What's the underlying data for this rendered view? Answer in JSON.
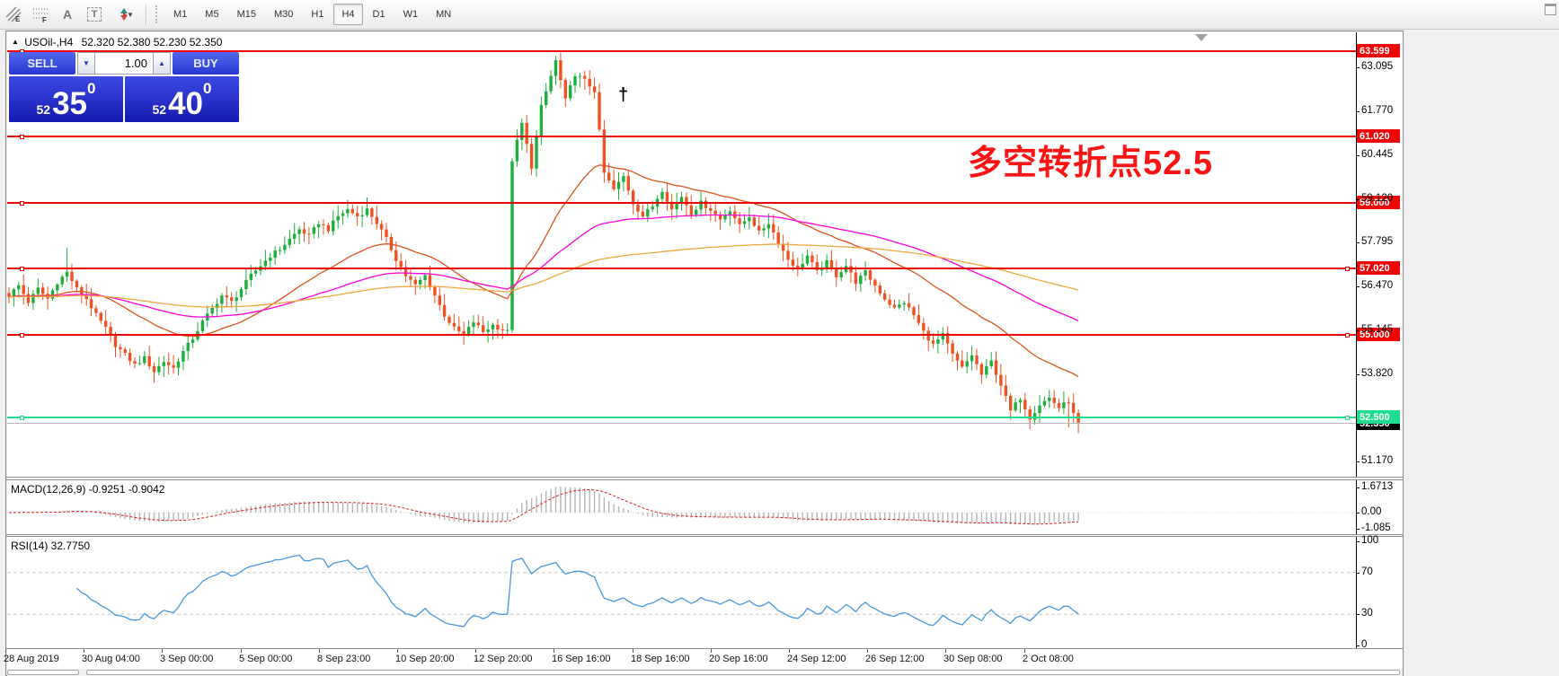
{
  "toolbar": {
    "tools": [
      "channel-e-tool",
      "grid-f-tool",
      "text-tool",
      "label-tool",
      "arrows-tool"
    ],
    "timeframes": [
      "M1",
      "M5",
      "M15",
      "M30",
      "H1",
      "H4",
      "D1",
      "W1",
      "MN"
    ],
    "active_timeframe": "H4"
  },
  "title": {
    "marker": "▲",
    "symbol": "USOil-,H4",
    "ohlc": "52.320 52.380 52.230 52.350"
  },
  "trade": {
    "sell_label": "SELL",
    "buy_label": "BUY",
    "volume": "1.00",
    "sell_price": {
      "big": "52",
      "main": "35",
      "sup": "0"
    },
    "buy_price": {
      "big": "52",
      "main": "40",
      "sup": "0"
    }
  },
  "annotation": {
    "text": "多空转折点52.5",
    "color": "#fb1414"
  },
  "price_axis": {
    "ticks": [
      {
        "label": "63.095",
        "price": 63.095
      },
      {
        "label": "61.770",
        "price": 61.77
      },
      {
        "label": "60.445",
        "price": 60.445
      },
      {
        "label": "59.120",
        "price": 59.12
      },
      {
        "label": "57.795",
        "price": 57.795
      },
      {
        "label": "56.470",
        "price": 56.47
      },
      {
        "label": "55.145",
        "price": 55.145
      },
      {
        "label": "53.820",
        "price": 53.82
      },
      {
        "label": "51.170",
        "price": 51.17
      }
    ]
  },
  "hlines": [
    {
      "label": "63.599",
      "price": 63.599,
      "color": "#ee0404",
      "anchors": 1
    },
    {
      "label": "61.020",
      "price": 61.02,
      "color": "#ee0404",
      "anchors": 1
    },
    {
      "label": "59.000",
      "price": 59.0,
      "color": "#ee0404",
      "anchors": 1
    },
    {
      "label": "57.020",
      "price": 57.02,
      "color": "#ee0404",
      "anchors": 2
    },
    {
      "label": "55.000",
      "price": 55.0,
      "color": "#ee0404",
      "anchors": 2
    },
    {
      "label": "52.500",
      "price": 52.5,
      "color": "#1fdd8e",
      "anchors": 2
    }
  ],
  "bid": {
    "label": "52.350",
    "price": 52.35,
    "line_color": "#b8b8b8",
    "badge_color": "#000000"
  },
  "macd": {
    "header": "MACD(12,26,9) -0.9251 -0.9042",
    "ticks": [
      {
        "label": "1.6713",
        "value": 1.6713
      },
      {
        "label": "0.00",
        "value": 0
      },
      {
        "label": "-1.085",
        "value": -1.085
      }
    ],
    "hist_color": "#b6b6b6",
    "signal_color": "#dd1c1c"
  },
  "rsi": {
    "header": "RSI(14) 32.7750",
    "ticks": [
      {
        "label": "100",
        "value": 100
      },
      {
        "label": "70",
        "value": 70
      },
      {
        "label": "30",
        "value": 30
      },
      {
        "label": "0",
        "value": 0
      }
    ],
    "levels": [
      70,
      30
    ],
    "line_color": "#4697e0",
    "period": 14
  },
  "time_axis": {
    "labels": [
      "28 Aug 2019",
      "30 Aug 04:00",
      "3 Sep 00:00",
      "5 Sep 00:00",
      "8 Sep 23:00",
      "10 Sep 20:00",
      "12 Sep 20:00",
      "16 Sep 16:00",
      "18 Sep 16:00",
      "20 Sep 16:00",
      "24 Sep 12:00",
      "26 Sep 12:00",
      "30 Sep 08:00",
      "2 Oct 08:00"
    ]
  },
  "chart_data": {
    "type": "candlestick",
    "symbol": "USOil-",
    "timeframe": "H4",
    "ohlc_current": {
      "open": "52.320",
      "high": "52.380",
      "low": "52.230",
      "close": "52.350"
    },
    "count": 222,
    "noise": 0.14,
    "colors": {
      "up": "#1daf3c",
      "down": "#ef5123"
    },
    "close_waypoints": [
      [
        0,
        56.2
      ],
      [
        2,
        56.5
      ],
      [
        4,
        56.0
      ],
      [
        6,
        56.4
      ],
      [
        8,
        56.1
      ],
      [
        10,
        56.6
      ],
      [
        12,
        56.9
      ],
      [
        14,
        56.4
      ],
      [
        16,
        56.1
      ],
      [
        18,
        55.6
      ],
      [
        20,
        55.2
      ],
      [
        22,
        54.7
      ],
      [
        24,
        54.4
      ],
      [
        26,
        54.1
      ],
      [
        28,
        54.3
      ],
      [
        30,
        53.9
      ],
      [
        32,
        54.2
      ],
      [
        34,
        54.0
      ],
      [
        36,
        54.5
      ],
      [
        38,
        54.9
      ],
      [
        40,
        55.4
      ],
      [
        42,
        55.8
      ],
      [
        44,
        56.2
      ],
      [
        46,
        56.0
      ],
      [
        48,
        56.4
      ],
      [
        50,
        56.8
      ],
      [
        52,
        57.1
      ],
      [
        54,
        57.4
      ],
      [
        56,
        57.6
      ],
      [
        58,
        57.9
      ],
      [
        60,
        58.2
      ],
      [
        62,
        58.0
      ],
      [
        64,
        58.4
      ],
      [
        66,
        58.2
      ],
      [
        68,
        58.6
      ],
      [
        70,
        58.8
      ],
      [
        72,
        58.6
      ],
      [
        74,
        58.8
      ],
      [
        76,
        58.4
      ],
      [
        78,
        57.9
      ],
      [
        80,
        57.3
      ],
      [
        82,
        56.8
      ],
      [
        84,
        56.5
      ],
      [
        86,
        56.8
      ],
      [
        88,
        56.2
      ],
      [
        90,
        55.6
      ],
      [
        92,
        55.2
      ],
      [
        94,
        55.0
      ],
      [
        96,
        55.4
      ],
      [
        98,
        55.1
      ],
      [
        100,
        55.3
      ],
      [
        103,
        55.1
      ],
      [
        104,
        60.3
      ],
      [
        106,
        61.4
      ],
      [
        108,
        60.1
      ],
      [
        110,
        61.9
      ],
      [
        113,
        63.3
      ],
      [
        115,
        62.1
      ],
      [
        117,
        62.9
      ],
      [
        119,
        62.7
      ],
      [
        121,
        62.4
      ],
      [
        123,
        59.9
      ],
      [
        125,
        59.4
      ],
      [
        127,
        59.8
      ],
      [
        129,
        59.0
      ],
      [
        131,
        58.6
      ],
      [
        133,
        58.9
      ],
      [
        135,
        59.4
      ],
      [
        137,
        58.8
      ],
      [
        139,
        59.2
      ],
      [
        141,
        58.7
      ],
      [
        143,
        59.0
      ],
      [
        145,
        58.8
      ],
      [
        147,
        58.5
      ],
      [
        149,
        58.8
      ],
      [
        151,
        58.3
      ],
      [
        153,
        58.6
      ],
      [
        155,
        58.1
      ],
      [
        157,
        58.4
      ],
      [
        159,
        57.8
      ],
      [
        161,
        57.3
      ],
      [
        163,
        57.0
      ],
      [
        165,
        57.4
      ],
      [
        167,
        56.9
      ],
      [
        169,
        57.2
      ],
      [
        171,
        56.8
      ],
      [
        173,
        57.1
      ],
      [
        175,
        56.6
      ],
      [
        177,
        56.9
      ],
      [
        179,
        56.5
      ],
      [
        181,
        56.1
      ],
      [
        183,
        55.8
      ],
      [
        185,
        56.0
      ],
      [
        187,
        55.6
      ],
      [
        189,
        55.1
      ],
      [
        191,
        54.7
      ],
      [
        193,
        55.0
      ],
      [
        195,
        54.4
      ],
      [
        197,
        54.0
      ],
      [
        199,
        54.4
      ],
      [
        201,
        53.8
      ],
      [
        203,
        54.2
      ],
      [
        205,
        53.5
      ],
      [
        207,
        52.7
      ],
      [
        209,
        53.1
      ],
      [
        211,
        52.5
      ],
      [
        213,
        52.9
      ],
      [
        215,
        53.1
      ],
      [
        217,
        52.8
      ],
      [
        219,
        53.0
      ],
      [
        220,
        52.6
      ],
      [
        221,
        52.35
      ]
    ],
    "high_overrides": [
      [
        12,
        57.65
      ],
      [
        113,
        63.45
      ]
    ],
    "low_overrides": [
      [
        30,
        53.55
      ],
      [
        219,
        52.2
      ]
    ],
    "moving_averages": [
      {
        "name": "ma-fast",
        "period": 34,
        "color": "#e0521c"
      },
      {
        "name": "ma-mid",
        "period": 89,
        "color": "#ff00dc"
      },
      {
        "name": "ma-slow",
        "period": 200,
        "color": "#eca83e"
      }
    ],
    "macd_params": {
      "fast": 12,
      "slow": 26,
      "signal": 9
    }
  }
}
